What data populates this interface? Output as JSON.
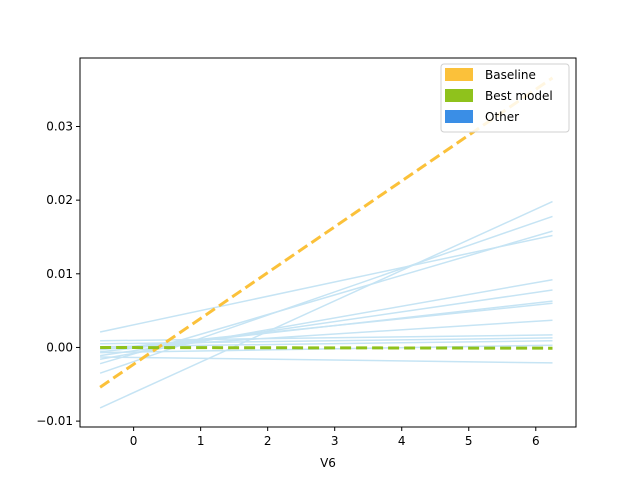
{
  "chart_data": {
    "type": "line",
    "title": "",
    "xlabel": "V6",
    "ylabel": "",
    "xlim": [
      -0.8,
      6.6
    ],
    "ylim": [
      -0.0108,
      0.0393
    ],
    "xticks": [
      0,
      1,
      2,
      3,
      4,
      5,
      6
    ],
    "yticks": [
      -0.01,
      0.0,
      0.01,
      0.02,
      0.03
    ],
    "ytick_labels": [
      "−0.01",
      "0.00",
      "0.01",
      "0.02",
      "0.03"
    ],
    "xtick_labels": [
      "0",
      "1",
      "2",
      "3",
      "4",
      "5",
      "6"
    ],
    "grid": false,
    "legend": {
      "position": "top-right",
      "entries": [
        {
          "label": "Baseline",
          "color": "#fbc13a"
        },
        {
          "label": "Best model",
          "color": "#8fc21c"
        },
        {
          "label": "Other",
          "color": "#3a8ee6"
        }
      ]
    },
    "series": [
      {
        "name": "Baseline",
        "color": "#fbc13a",
        "style": "dashed",
        "x": [
          -0.5,
          6.25
        ],
        "y": [
          -0.0054,
          0.0366
        ]
      },
      {
        "name": "Best model",
        "color": "#8fc21c",
        "style": "dashed",
        "x": [
          -0.5,
          6.25
        ],
        "y": [
          0.0,
          -0.0001
        ]
      },
      {
        "color": "#c6e4f4",
        "x": [
          -0.5,
          6.25
        ],
        "y": [
          -0.0082,
          0.0198
        ]
      },
      {
        "color": "#c6e4f4",
        "x": [
          -0.5,
          6.25
        ],
        "y": [
          -0.0035,
          0.0178
        ]
      },
      {
        "color": "#c6e4f4",
        "x": [
          -0.5,
          6.25
        ],
        "y": [
          0.0021,
          0.0152
        ]
      },
      {
        "color": "#c6e4f4",
        "x": [
          -0.5,
          6.25
        ],
        "y": [
          -0.0022,
          0.0158
        ]
      },
      {
        "color": "#c6e4f4",
        "x": [
          -0.5,
          6.25
        ],
        "y": [
          -0.0016,
          0.0092
        ]
      },
      {
        "color": "#c6e4f4",
        "x": [
          -0.5,
          6.25
        ],
        "y": [
          -0.0011,
          0.0078
        ]
      },
      {
        "color": "#c6e4f4",
        "x": [
          -0.5,
          6.25
        ],
        "y": [
          -0.0006,
          0.0063
        ]
      },
      {
        "color": "#c6e4f4",
        "x": [
          -0.5,
          6.25
        ],
        "y": [
          -0.0003,
          0.006
        ]
      },
      {
        "color": "#c6e4f4",
        "x": [
          -0.5,
          6.25
        ],
        "y": [
          -0.0002,
          0.0037
        ]
      },
      {
        "color": "#c6e4f4",
        "x": [
          -0.5,
          6.25
        ],
        "y": [
          0.0009,
          0.0017
        ]
      },
      {
        "color": "#c6e4f4",
        "x": [
          -0.5,
          6.25
        ],
        "y": [
          0.0005,
          0.0013
        ]
      },
      {
        "color": "#c6e4f4",
        "x": [
          -0.5,
          6.25
        ],
        "y": [
          0.0001,
          0.0009
        ]
      },
      {
        "color": "#c6e4f4",
        "x": [
          -0.5,
          6.25
        ],
        "y": [
          -0.0007,
          0.0003
        ]
      },
      {
        "color": "#c6e4f4",
        "x": [
          -0.5,
          6.25
        ],
        "y": [
          -0.0013,
          -0.0021
        ]
      }
    ]
  }
}
